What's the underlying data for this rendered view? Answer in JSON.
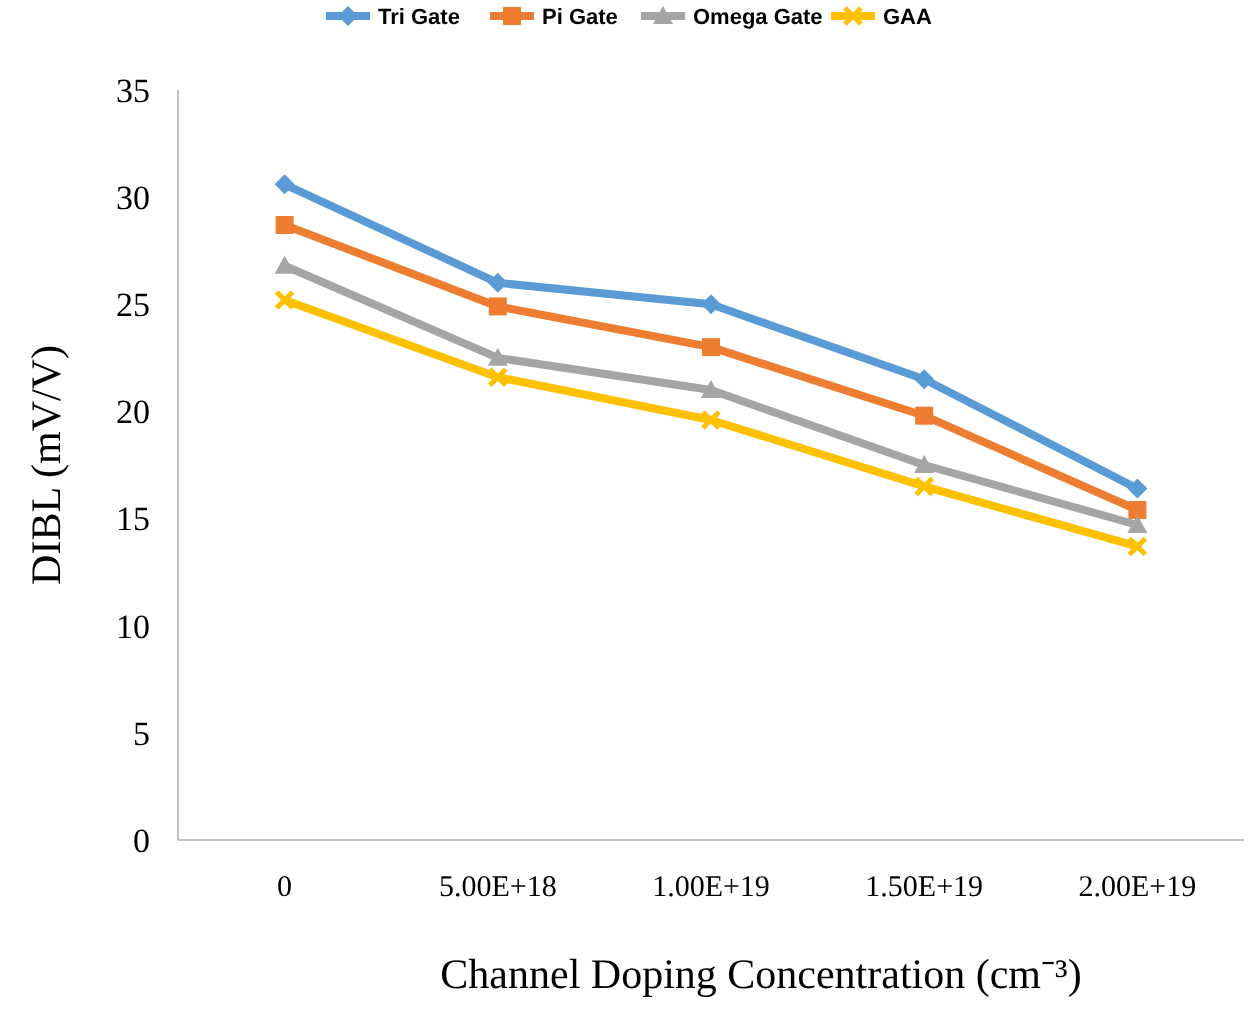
{
  "chart_data": {
    "type": "line",
    "xlabel": "Channel Doping Concentration (cm⁻³)",
    "ylabel": "DIBL (mV/V)",
    "categories": [
      "0",
      "5.00E+18",
      "1.00E+19",
      "1.50E+19",
      "2.00E+19"
    ],
    "ylim": [
      0,
      35
    ],
    "yticks": [
      0,
      5,
      10,
      15,
      20,
      25,
      30,
      35
    ],
    "grid": false,
    "legend": "top",
    "series": [
      {
        "name": "Tri Gate",
        "color": "#5b9bd5",
        "marker": "diamond",
        "values": [
          30.6,
          26.0,
          25.0,
          21.5,
          16.4
        ]
      },
      {
        "name": "Pi Gate",
        "color": "#ed7d31",
        "marker": "square",
        "values": [
          28.7,
          24.9,
          23.0,
          19.8,
          15.4
        ]
      },
      {
        "name": "Omega Gate",
        "color": "#a5a5a5",
        "marker": "triangle",
        "values": [
          26.8,
          22.5,
          21.0,
          17.5,
          14.7
        ]
      },
      {
        "name": "GAA",
        "color": "#ffc000",
        "marker": "cross",
        "values": [
          25.2,
          21.6,
          19.6,
          16.5,
          13.7
        ]
      }
    ]
  }
}
